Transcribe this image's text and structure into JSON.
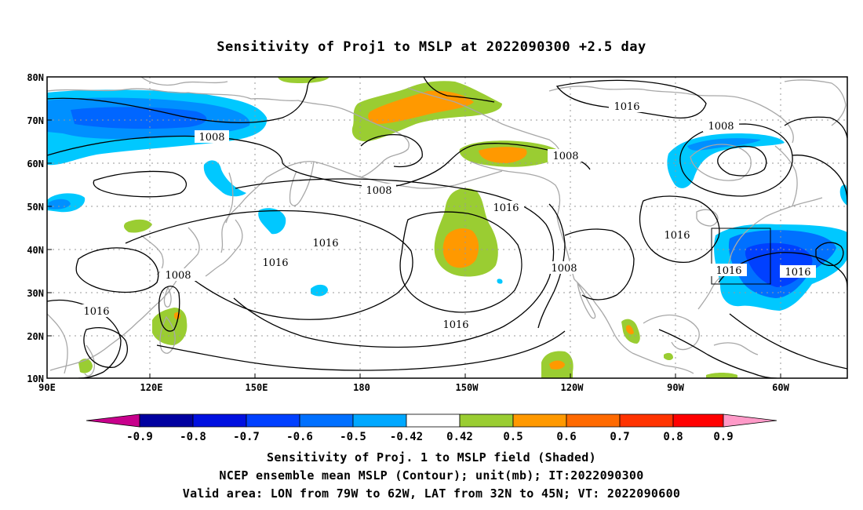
{
  "title": "Sensitivity of Proj1 to MSLP at 2022090300 +2.5 day",
  "lat_labels": [
    "80N",
    "70N",
    "60N",
    "50N",
    "40N",
    "30N",
    "20N",
    "10N"
  ],
  "lon_labels": [
    "90E",
    "120E",
    "150E",
    "180",
    "150W",
    "120W",
    "90W",
    "60W"
  ],
  "contour_labels": [
    {
      "id": "c1008a",
      "text": "1008"
    },
    {
      "id": "c1008b",
      "text": "1008"
    },
    {
      "id": "c1008c",
      "text": "1008"
    },
    {
      "id": "c1008d",
      "text": "1008"
    },
    {
      "id": "c1008e",
      "text": "1008"
    },
    {
      "id": "c1008f",
      "text": "1008"
    },
    {
      "id": "c1016a",
      "text": "1016"
    },
    {
      "id": "c1016b",
      "text": "1016"
    },
    {
      "id": "c1016c",
      "text": "1016"
    },
    {
      "id": "c1016d",
      "text": "1016"
    },
    {
      "id": "c1016e",
      "text": "1016"
    },
    {
      "id": "c1016f",
      "text": "1016"
    },
    {
      "id": "c1016g",
      "text": "1016"
    },
    {
      "id": "c1016h",
      "text": "1016"
    },
    {
      "id": "c1016i",
      "text": "1016"
    }
  ],
  "colorbar": {
    "labels": [
      "-0.9",
      "-0.8",
      "-0.7",
      "-0.6",
      "-0.5",
      "-0.42",
      "0.42",
      "0.5",
      "0.6",
      "0.7",
      "0.8",
      "0.9"
    ],
    "colors": [
      "#0000a0",
      "#0010e0",
      "#0040ff",
      "#0070ff",
      "#00a8ff",
      "#ffffff",
      "#9acd32",
      "#ff9900",
      "#ff6a00",
      "#ff3300",
      "#ff0000"
    ],
    "low_color": "#c8008c",
    "high_color": "#ff9ac8"
  },
  "captions": [
    "Sensitivity of Proj. 1 to MSLP field (Shaded)",
    "NCEP ensemble mean MSLP (Contour); unit(mb); IT:2022090300",
    "Valid area: LON from 79W to 62W, LAT from 32N to 45N; VT: 2022090600"
  ]
}
